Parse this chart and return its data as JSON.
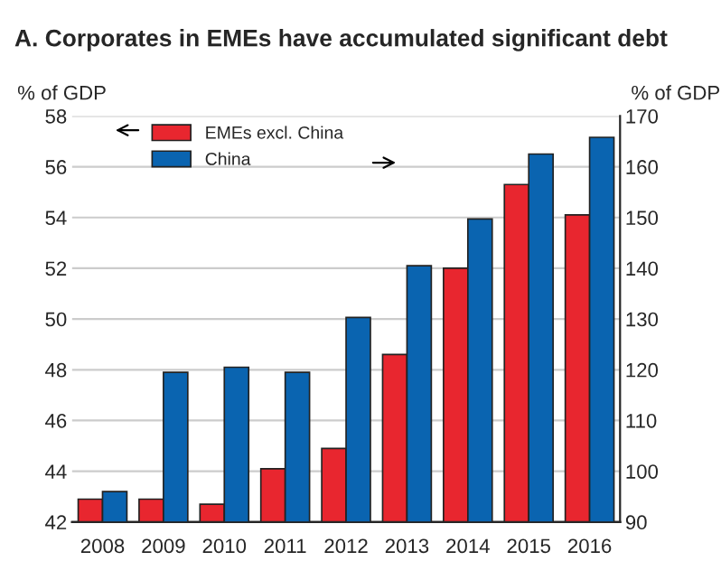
{
  "chart_data": {
    "type": "bar",
    "title": "A. Corporates in EMEs have accumulated significant debt",
    "ylabel": "% of GDP",
    "y2label": "% of GDP",
    "categories": [
      "2008",
      "2009",
      "2010",
      "2011",
      "2012",
      "2013",
      "2014",
      "2015",
      "2016"
    ],
    "series": [
      {
        "name": "EMEs excl. China",
        "color": "#e8262f",
        "values": [
          42.9,
          42.9,
          42.7,
          44.1,
          44.9,
          48.6,
          52.0,
          55.3,
          54.1
        ]
      },
      {
        "name": "China",
        "color": "#0a64b0",
        "axis": "y2",
        "values": [
          96,
          119.5,
          120.5,
          119.5,
          130.3,
          140.5,
          149.7,
          162.5,
          165.8
        ]
      }
    ],
    "ylim": [
      42,
      58
    ],
    "yticks": [
      42,
      44,
      46,
      48,
      50,
      52,
      54,
      56,
      58
    ],
    "y2lim": [
      90,
      170
    ],
    "y2ticks": [
      90,
      100,
      110,
      120,
      130,
      140,
      150,
      160,
      170
    ],
    "grid": "y",
    "legend": "top left"
  }
}
